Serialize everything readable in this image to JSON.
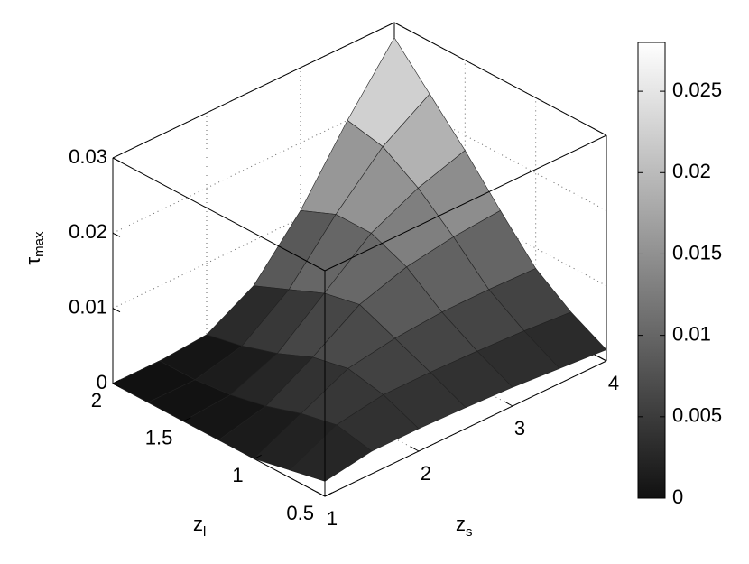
{
  "chart_data": {
    "type": "surface",
    "x": [
      1,
      1.5,
      2,
      2.5,
      3,
      3.5,
      4
    ],
    "y": [
      0.5,
      0.75,
      1,
      1.25,
      1.5,
      1.75,
      2
    ],
    "z": [
      [
        0.002,
        0.003,
        0.003,
        0.0028,
        0.0025,
        0.002,
        0.0015
      ],
      [
        0.001,
        0.004,
        0.005,
        0.005,
        0.0048,
        0.0045,
        0.004
      ],
      [
        0,
        0.003,
        0.006,
        0.007,
        0.0075,
        0.0075,
        0.0073
      ],
      [
        0,
        0.0015,
        0.005,
        0.009,
        0.011,
        0.012,
        0.0125
      ],
      [
        0,
        0.0005,
        0.003,
        0.008,
        0.013,
        0.016,
        0.018
      ],
      [
        0,
        0,
        0.0015,
        0.006,
        0.013,
        0.019,
        0.023
      ],
      [
        0,
        0,
        0.0005,
        0.004,
        0.011,
        0.02,
        0.028
      ]
    ],
    "xlabel": "z",
    "xlabel_sub": "s",
    "ylabel": "z",
    "ylabel_sub": "l",
    "zlabel": "τ",
    "zlabel_sub": "max",
    "xlim": [
      1,
      4
    ],
    "xticks": [
      1,
      2,
      3,
      4
    ],
    "ylim": [
      0.5,
      2
    ],
    "yticks": [
      0.5,
      1,
      1.5,
      2
    ],
    "zlim": [
      0,
      0.03
    ],
    "zticks": [
      0,
      0.01,
      0.02,
      0.03
    ],
    "clim": [
      0,
      0.028
    ],
    "cticks": [
      0,
      0.005,
      0.01,
      0.015,
      0.02,
      0.025
    ],
    "colormap": "gray",
    "grid": true
  }
}
